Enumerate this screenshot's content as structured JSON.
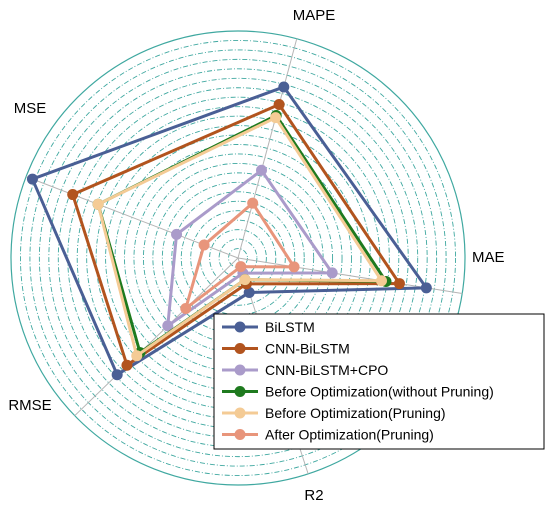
{
  "chart_data": {
    "type": "radar",
    "axes": [
      "MAE",
      "MAPE",
      "MSE",
      "RMSE",
      "R2"
    ],
    "range": [
      0,
      1
    ],
    "grid": true,
    "legend_position": "bottom-right",
    "series": [
      {
        "name": "BiLSTM",
        "color": "#4A5F95",
        "values": [
          0.84,
          0.78,
          0.97,
          0.74,
          0.16
        ]
      },
      {
        "name": "CNN-BiLSTM",
        "color": "#B2541E",
        "values": [
          0.72,
          0.7,
          0.78,
          0.68,
          0.12
        ]
      },
      {
        "name": "CNN-BiLSTM+CPO",
        "color": "#AA9BCA",
        "values": [
          0.42,
          0.4,
          0.29,
          0.43,
          0.07
        ]
      },
      {
        "name": "Before Optimization(without Pruning)",
        "color": "#1E7A1E",
        "values": [
          0.66,
          0.65,
          0.66,
          0.6,
          0.1
        ]
      },
      {
        "name": "Before Optimization(Pruning)",
        "color": "#F4CB95",
        "values": [
          0.64,
          0.64,
          0.66,
          0.62,
          0.1
        ]
      },
      {
        "name": "After Optimization(Pruning)",
        "color": "#E8957B",
        "values": [
          0.25,
          0.25,
          0.16,
          0.32,
          0.04
        ]
      }
    ]
  }
}
